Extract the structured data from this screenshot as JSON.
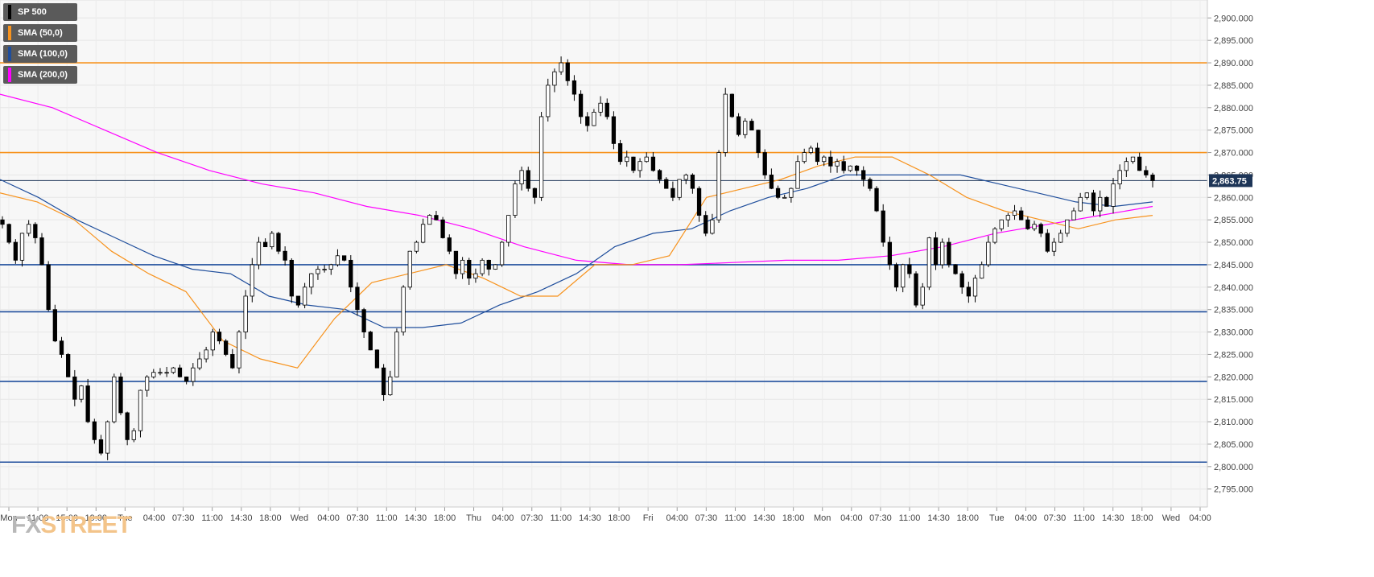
{
  "legend": [
    {
      "label": "SP 500",
      "color": "#000000"
    },
    {
      "label": "SMA (50,0)",
      "color": "#f7931e"
    },
    {
      "label": "SMA (100,0)",
      "color": "#1f4e9c"
    },
    {
      "label": "SMA (200,0)",
      "color": "#ff00ff"
    }
  ],
  "logo": {
    "part1": "FX",
    "part2": "STREET"
  },
  "colors": {
    "resistance": "#f7931e",
    "support": "#1f4e9c",
    "sma50": "#f7931e",
    "sma100": "#1f4e9c",
    "sma200": "#ff00ff",
    "price_tag_bg": "#1d3557"
  },
  "chart_data": {
    "type": "candlestick",
    "title": "",
    "xlabel": "",
    "ylabel": "",
    "ylim": [
      2791,
      2904
    ],
    "y_ticks": [
      2795,
      2800,
      2805,
      2810,
      2815,
      2820,
      2825,
      2830,
      2835,
      2840,
      2845,
      2850,
      2855,
      2860,
      2865,
      2870,
      2875,
      2880,
      2885,
      2890,
      2895,
      2900
    ],
    "x_ticks": [
      "Mon",
      "11:00",
      "15:00",
      "19:00",
      "Tue",
      "04:00",
      "07:30",
      "11:00",
      "14:30",
      "18:00",
      "Wed",
      "04:00",
      "07:30",
      "11:00",
      "14:30",
      "18:00",
      "Thu",
      "04:00",
      "07:30",
      "11:00",
      "14:30",
      "18:00",
      "Fri",
      "04:00",
      "07:30",
      "11:00",
      "14:30",
      "18:00",
      "Mon",
      "04:00",
      "07:30",
      "11:00",
      "14:30",
      "18:00",
      "Tue",
      "04:00",
      "07:30",
      "11:00",
      "14:30",
      "18:00",
      "Wed",
      "04:00"
    ],
    "last_price": 2863.75,
    "last_price_label": "2,863.75",
    "grid": true,
    "horizontal_levels": [
      {
        "value": 2890,
        "type": "resistance"
      },
      {
        "value": 2870,
        "type": "resistance"
      },
      {
        "value": 2845,
        "type": "support"
      },
      {
        "value": 2834.5,
        "type": "support"
      },
      {
        "value": 2819,
        "type": "support"
      },
      {
        "value": 2801,
        "type": "support"
      }
    ],
    "close_path": [
      2854,
      2850,
      2846,
      2852,
      2854,
      2851,
      2845,
      2835,
      2828,
      2825,
      2820,
      2815,
      2818,
      2810,
      2806,
      2803,
      2810,
      2820,
      2812,
      2806,
      2808,
      2817,
      2820,
      2821,
      2821,
      2821,
      2822,
      2820,
      2819,
      2822,
      2824,
      2826,
      2830,
      2828,
      2825,
      2822,
      2830,
      2838,
      2845,
      2850,
      2849,
      2852,
      2848,
      2846,
      2838,
      2836,
      2840,
      2843,
      2844,
      2844,
      2845,
      2847,
      2846,
      2840,
      2835,
      2830,
      2826,
      2822,
      2816,
      2820,
      2830,
      2840,
      2848,
      2850,
      2854,
      2856,
      2855,
      2851,
      2848,
      2843,
      2846,
      2842,
      2843,
      2846,
      2844,
      2845,
      2850,
      2856,
      2863,
      2866,
      2862,
      2860,
      2878,
      2885,
      2888,
      2890,
      2886,
      2883,
      2878,
      2876,
      2879,
      2881,
      2878,
      2872,
      2868,
      2869,
      2866,
      2868,
      2869,
      2866,
      2864,
      2862,
      2860,
      2864,
      2865,
      2862,
      2856,
      2852,
      2855,
      2870,
      2883,
      2878,
      2874,
      2877,
      2875,
      2870,
      2865,
      2862,
      2860,
      2860,
      2862,
      2868,
      2870,
      2871,
      2868,
      2869,
      2867,
      2868,
      2866,
      2867,
      2866,
      2864,
      2862,
      2857,
      2850,
      2845,
      2840,
      2845,
      2843,
      2836,
      2840,
      2851,
      2845,
      2850,
      2845,
      2843,
      2840,
      2838,
      2842,
      2845,
      2850,
      2853,
      2855,
      2856,
      2857,
      2855,
      2853,
      2854,
      2852,
      2848,
      2850,
      2852,
      2855,
      2857,
      2860,
      2861,
      2857,
      2860,
      2858,
      2863,
      2866,
      2868,
      2869,
      2866,
      2865,
      2863.75
    ],
    "sma_50": [
      2861,
      2859,
      2855,
      2848,
      2843,
      2839,
      2828,
      2824,
      2822,
      2833,
      2841,
      2843,
      2845,
      2842,
      2838,
      2838,
      2845,
      2845,
      2847,
      2860,
      2862,
      2864,
      2867,
      2869,
      2869,
      2865,
      2860,
      2857,
      2855,
      2853,
      2855,
      2856
    ],
    "sma_100": [
      2864,
      2860,
      2855,
      2851,
      2847,
      2844,
      2843,
      2838,
      2836,
      2835,
      2831,
      2831,
      2832,
      2836,
      2839,
      2843,
      2849,
      2852,
      2853,
      2857,
      2860,
      2862,
      2865,
      2865,
      2865,
      2865,
      2863,
      2861,
      2859,
      2858,
      2859
    ],
    "sma_200": [
      2883,
      2880,
      2875,
      2870,
      2866,
      2863,
      2861,
      2858,
      2856,
      2853,
      2849,
      2846,
      2845,
      2845,
      2845.5,
      2846,
      2846,
      2847,
      2849,
      2852,
      2854,
      2856,
      2858
    ]
  }
}
